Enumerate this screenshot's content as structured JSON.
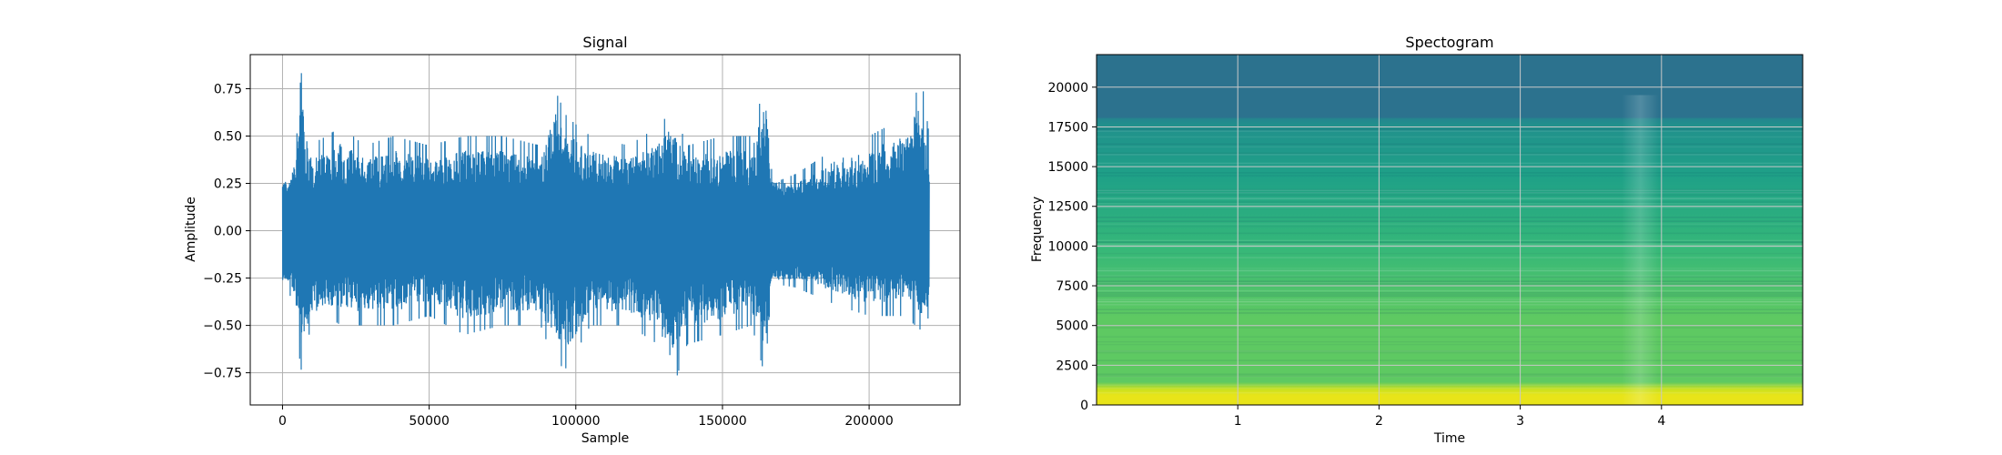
{
  "chart_data": [
    {
      "type": "line",
      "title": "Signal",
      "xlabel": "Sample",
      "ylabel": "Amplitude",
      "xlim": [
        -11000,
        231000
      ],
      "ylim": [
        -0.92,
        0.93
      ],
      "xticks": [
        0,
        50000,
        100000,
        150000,
        200000
      ],
      "xtick_labels": [
        "0",
        "50000",
        "100000",
        "150000",
        "200000"
      ],
      "yticks": [
        0.75,
        0.5,
        0.25,
        0.0,
        -0.25,
        -0.5,
        -0.75
      ],
      "ytick_labels": [
        "0.75",
        "0.50",
        "0.25",
        "0.00",
        "−0.25",
        "−0.50",
        "−0.75"
      ],
      "grid": true,
      "color": "#1f77b4",
      "x_range": [
        0,
        220500
      ],
      "envelope_x": [
        0,
        3000,
        6500,
        9000,
        15000,
        20000,
        28000,
        38000,
        50000,
        62000,
        75000,
        88000,
        93000,
        97000,
        105000,
        118000,
        128000,
        133000,
        138000,
        150000,
        160000,
        165000,
        167000,
        175000,
        190000,
        200000,
        212000,
        218000,
        220500
      ],
      "envelope_upper": [
        0.22,
        0.33,
        0.84,
        0.45,
        0.5,
        0.55,
        0.45,
        0.5,
        0.45,
        0.5,
        0.5,
        0.45,
        0.74,
        0.6,
        0.5,
        0.45,
        0.55,
        0.64,
        0.45,
        0.5,
        0.5,
        0.82,
        0.25,
        0.3,
        0.45,
        0.5,
        0.6,
        0.79,
        0.5
      ],
      "envelope_lower": [
        -0.3,
        -0.35,
        -0.75,
        -0.55,
        -0.45,
        -0.5,
        -0.5,
        -0.5,
        -0.45,
        -0.55,
        -0.5,
        -0.5,
        -0.7,
        -0.73,
        -0.5,
        -0.5,
        -0.6,
        -0.84,
        -0.6,
        -0.55,
        -0.5,
        -0.8,
        -0.28,
        -0.3,
        -0.4,
        -0.45,
        -0.45,
        -0.53,
        -0.45
      ]
    },
    {
      "type": "heatmap",
      "title": "Spectogram",
      "xlabel": "Time",
      "ylabel": "Frequency",
      "xlim": [
        0,
        5.0
      ],
      "ylim": [
        0,
        22050
      ],
      "xticks": [
        1,
        2,
        3,
        4
      ],
      "xtick_labels": [
        "1",
        "2",
        "3",
        "4"
      ],
      "yticks": [
        0,
        2500,
        5000,
        7500,
        10000,
        12500,
        15000,
        17500,
        20000
      ],
      "ytick_labels": [
        "0",
        "2500",
        "5000",
        "7500",
        "10000",
        "12500",
        "15000",
        "17500",
        "20000"
      ],
      "grid": true,
      "colormap": "viridis",
      "colormap_stops": [
        "#2c728e",
        "#24868e",
        "#21918c",
        "#1fa187",
        "#35b779",
        "#5ec962",
        "#90d743",
        "#c8e020",
        "#e8e419"
      ],
      "band_cutoff_frequency": 18000,
      "band_low_frequency": 1000
    }
  ]
}
